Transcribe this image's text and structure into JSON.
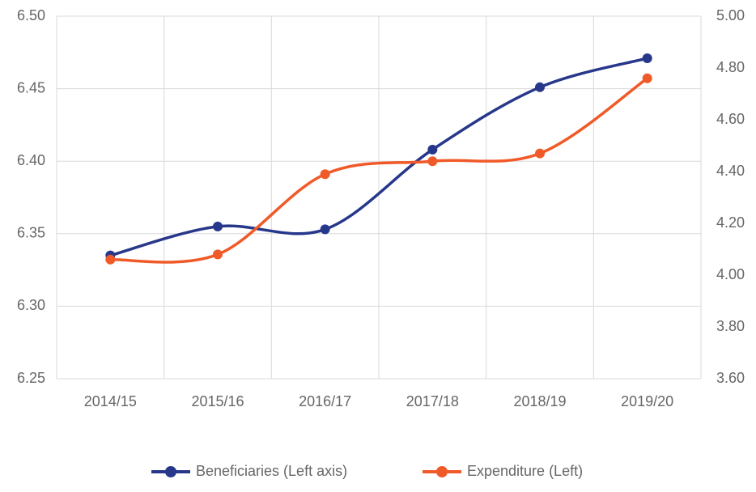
{
  "chart_data": {
    "type": "line",
    "categories": [
      "2014/15",
      "2015/16",
      "2016/17",
      "2017/18",
      "2018/19",
      "2019/20"
    ],
    "series": [
      {
        "name": "Beneficiaries (Left axis)",
        "color": "#27388b",
        "values": [
          6.335,
          6.355,
          6.353,
          6.408,
          6.451,
          6.471
        ]
      },
      {
        "name": "Expenditure (Left)",
        "color": "#f05a28",
        "axis": "y2",
        "values": [
          4.06,
          4.08,
          4.39,
          4.44,
          4.47,
          4.76
        ]
      }
    ],
    "ylim": [
      6.25,
      6.5
    ],
    "yticks": [
      6.25,
      {
        "value": 6.3,
        "label": "6.30"
      },
      6.35,
      {
        "value": 6.4,
        "label": "6.40"
      },
      6.45,
      {
        "value": 6.5,
        "label": "6.50"
      }
    ],
    "y2lim": [
      3.6,
      5.0
    ],
    "y2ticks": [
      {
        "value": 3.6,
        "label": "3.60"
      },
      {
        "value": 3.8,
        "label": "3.80"
      },
      {
        "value": 4.0,
        "label": "4.00"
      },
      {
        "value": 4.2,
        "label": "4.20"
      },
      {
        "value": 4.4,
        "label": "4.40"
      },
      {
        "value": 4.6,
        "label": "4.60"
      },
      {
        "value": 4.8,
        "label": "4.80"
      },
      {
        "value": 5.0,
        "label": "5.00"
      }
    ],
    "grid": true,
    "smooth": true,
    "legend": "bottom"
  }
}
